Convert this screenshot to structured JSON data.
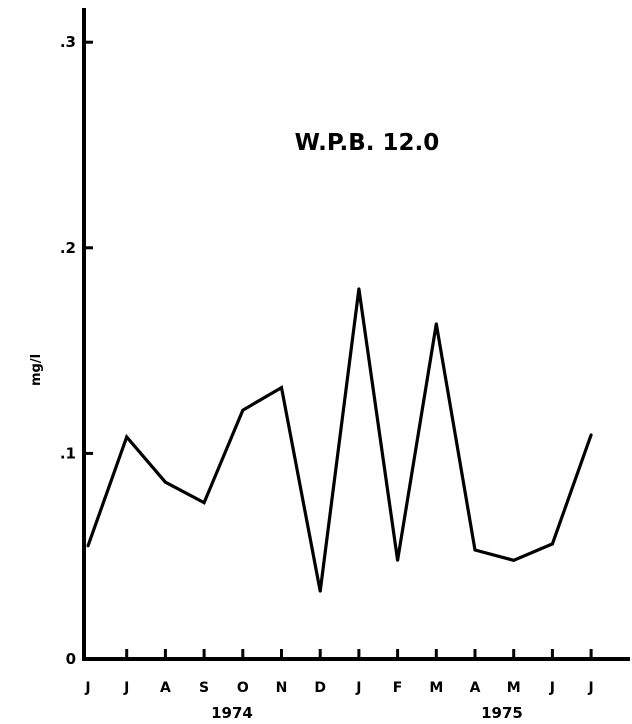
{
  "chart_data": {
    "type": "line",
    "title": "W.P.B. 12.0",
    "ylabel": "mg/l",
    "xlabel": "",
    "ylim": [
      0,
      0.3
    ],
    "y_ticks": [
      {
        "value": 0,
        "label": "0"
      },
      {
        "value": 0.1,
        "label": ".1"
      },
      {
        "value": 0.2,
        "label": ".2"
      },
      {
        "value": 0.3,
        "label": ".3"
      }
    ],
    "categories": [
      "J",
      "J",
      "A",
      "S",
      "O",
      "N",
      "D",
      "J",
      "F",
      "M",
      "A",
      "M",
      "J",
      "J"
    ],
    "values": [
      0.055,
      0.108,
      0.086,
      0.076,
      0.121,
      0.132,
      0.033,
      0.18,
      0.048,
      0.163,
      0.053,
      0.048,
      0.056,
      0.109
    ],
    "year_labels": [
      "1974",
      "1975"
    ],
    "grid": false,
    "legend": "none"
  }
}
